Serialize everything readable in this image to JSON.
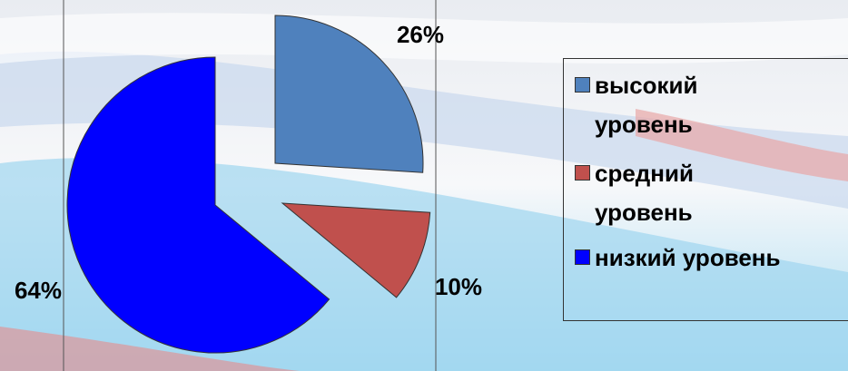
{
  "chart_data": {
    "type": "pie",
    "categories": [
      "высокий уровень",
      "средний уровень",
      "низкий уровень"
    ],
    "values": [
      26,
      10,
      64
    ],
    "value_labels": [
      "26%",
      "10%",
      "64%"
    ],
    "colors": [
      "#4f81bd",
      "#c0504d",
      "#0000ff"
    ],
    "legend": "right"
  }
}
